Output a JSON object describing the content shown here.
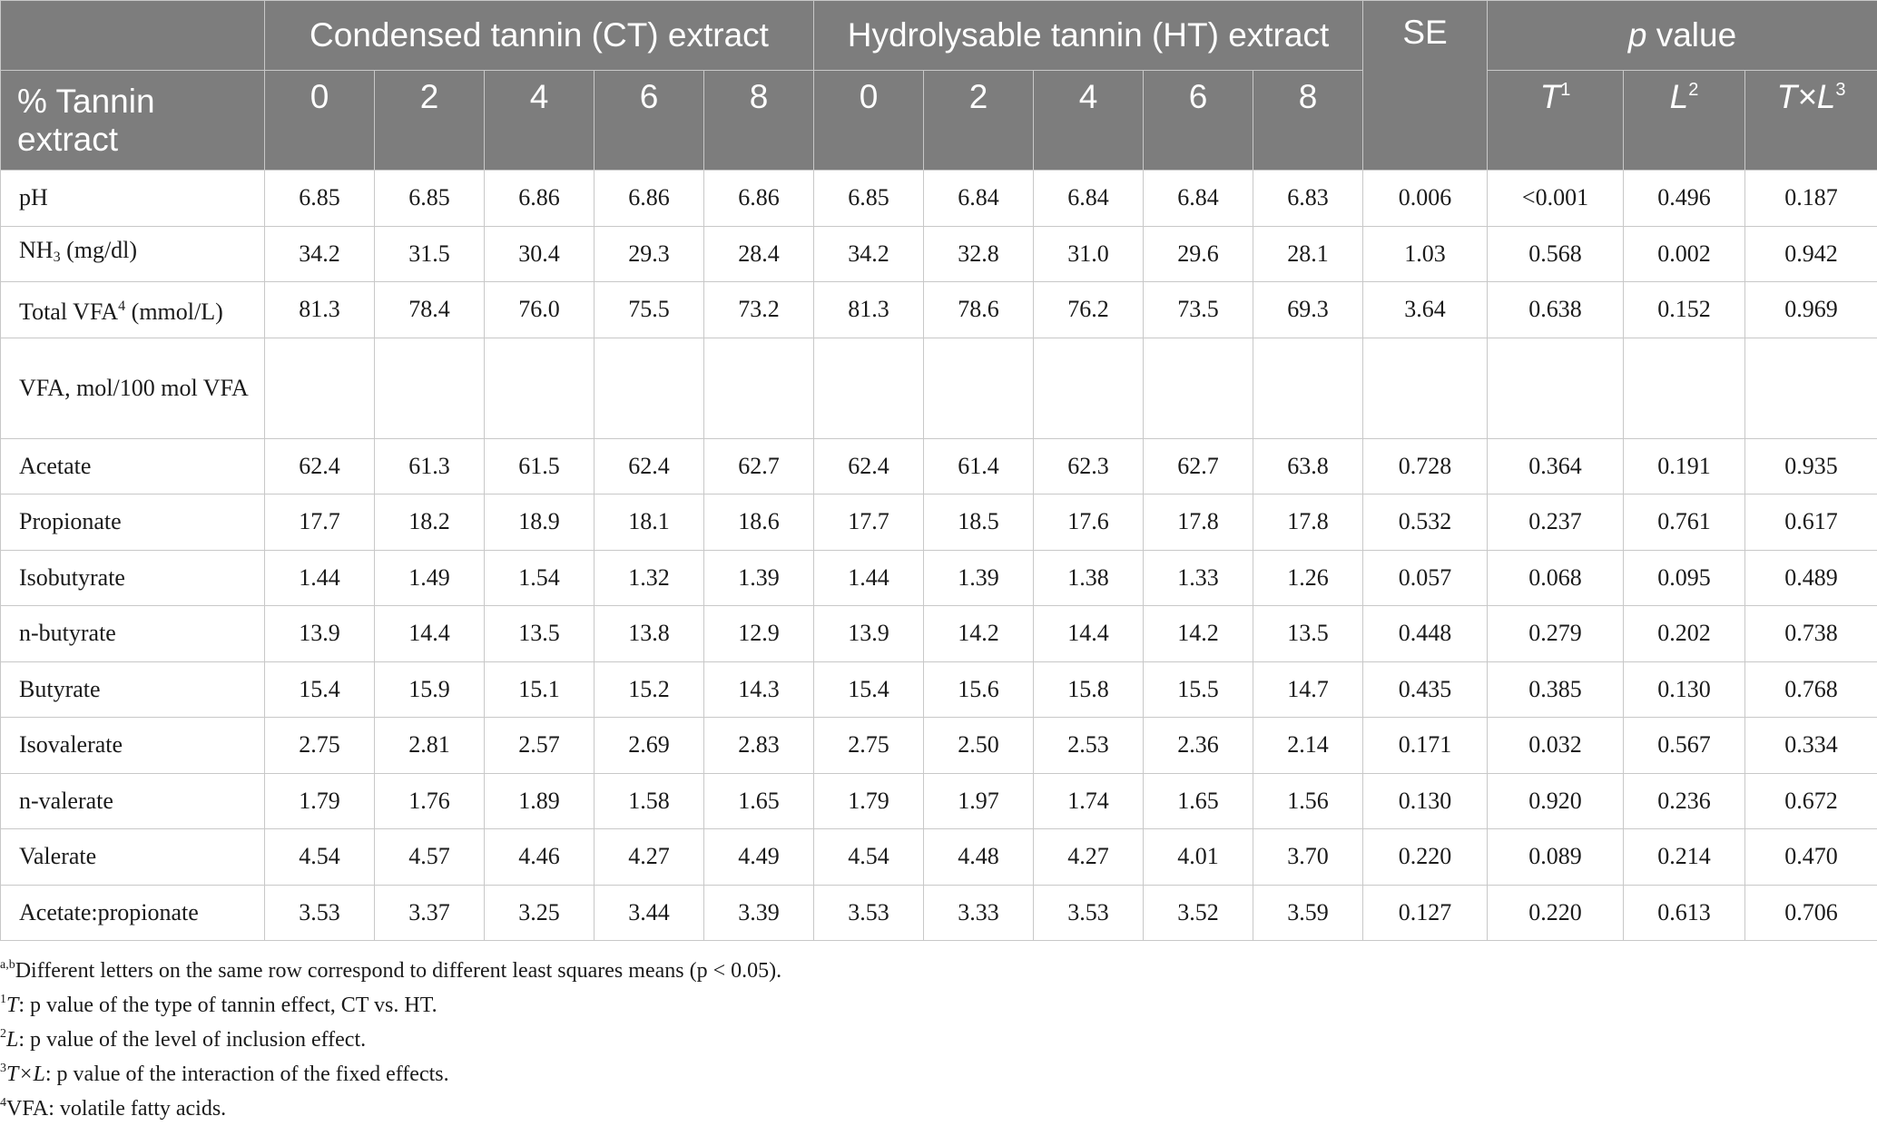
{
  "header": {
    "ct_group": "Condensed tannin (CT) extract",
    "ht_group": "Hydrolysable tannin (HT) extract",
    "se": "SE",
    "p_value_italic": "p",
    "p_value_rest": " value",
    "row_label": "% Tannin extract",
    "levels": [
      "0",
      "2",
      "4",
      "6",
      "8",
      "0",
      "2",
      "4",
      "6",
      "8"
    ],
    "p_cols": [
      {
        "main": "T",
        "sup": "1"
      },
      {
        "main": "L",
        "sup": "2"
      },
      {
        "main": "T×L",
        "sup": "3"
      }
    ]
  },
  "rows": [
    {
      "label": "pH",
      "values": [
        "6.85",
        "6.85",
        "6.86",
        "6.86",
        "6.86",
        "6.85",
        "6.84",
        "6.84",
        "6.84",
        "6.83",
        "0.006",
        "<0.001",
        "0.496",
        "0.187"
      ]
    },
    {
      "label_main": "NH",
      "label_sub": "3",
      "label_rest": " (mg/dl)",
      "values": [
        "34.2",
        "31.5",
        "30.4",
        "29.3",
        "28.4",
        "34.2",
        "32.8",
        "31.0",
        "29.6",
        "28.1",
        "1.03",
        "0.568",
        "0.002",
        "0.942"
      ]
    },
    {
      "label_main": "Total VFA",
      "label_sup": "4",
      "label_rest": " (mmol/L)",
      "values": [
        "81.3",
        "78.4",
        "76.0",
        "75.5",
        "73.2",
        "81.3",
        "78.6",
        "76.2",
        "73.5",
        "69.3",
        "3.64",
        "0.638",
        "0.152",
        "0.969"
      ]
    },
    {
      "label": "VFA, mol/100 mol VFA",
      "values": [
        "",
        "",
        "",
        "",
        "",
        "",
        "",
        "",
        "",
        "",
        "",
        "",
        "",
        ""
      ]
    },
    {
      "label": "Acetate",
      "values": [
        "62.4",
        "61.3",
        "61.5",
        "62.4",
        "62.7",
        "62.4",
        "61.4",
        "62.3",
        "62.7",
        "63.8",
        "0.728",
        "0.364",
        "0.191",
        "0.935"
      ]
    },
    {
      "label": "Propionate",
      "values": [
        "17.7",
        "18.2",
        "18.9",
        "18.1",
        "18.6",
        "17.7",
        "18.5",
        "17.6",
        "17.8",
        "17.8",
        "0.532",
        "0.237",
        "0.761",
        "0.617"
      ]
    },
    {
      "label": "Isobutyrate",
      "values": [
        "1.44",
        "1.49",
        "1.54",
        "1.32",
        "1.39",
        "1.44",
        "1.39",
        "1.38",
        "1.33",
        "1.26",
        "0.057",
        "0.068",
        "0.095",
        "0.489"
      ]
    },
    {
      "label": "n-butyrate",
      "values": [
        "13.9",
        "14.4",
        "13.5",
        "13.8",
        "12.9",
        "13.9",
        "14.2",
        "14.4",
        "14.2",
        "13.5",
        "0.448",
        "0.279",
        "0.202",
        "0.738"
      ]
    },
    {
      "label": "Butyrate",
      "values": [
        "15.4",
        "15.9",
        "15.1",
        "15.2",
        "14.3",
        "15.4",
        "15.6",
        "15.8",
        "15.5",
        "14.7",
        "0.435",
        "0.385",
        "0.130",
        "0.768"
      ]
    },
    {
      "label": "Isovalerate",
      "values": [
        "2.75",
        "2.81",
        "2.57",
        "2.69",
        "2.83",
        "2.75",
        "2.50",
        "2.53",
        "2.36",
        "2.14",
        "0.171",
        "0.032",
        "0.567",
        "0.334"
      ]
    },
    {
      "label": "n-valerate",
      "values": [
        "1.79",
        "1.76",
        "1.89",
        "1.58",
        "1.65",
        "1.79",
        "1.97",
        "1.74",
        "1.65",
        "1.56",
        "0.130",
        "0.920",
        "0.236",
        "0.672"
      ]
    },
    {
      "label": "Valerate",
      "values": [
        "4.54",
        "4.57",
        "4.46",
        "4.27",
        "4.49",
        "4.54",
        "4.48",
        "4.27",
        "4.01",
        "3.70",
        "0.220",
        "0.089",
        "0.214",
        "0.470"
      ]
    },
    {
      "label": "Acetate:propionate",
      "values": [
        "3.53",
        "3.37",
        "3.25",
        "3.44",
        "3.39",
        "3.53",
        "3.33",
        "3.53",
        "3.52",
        "3.59",
        "0.127",
        "0.220",
        "0.613",
        "0.706"
      ]
    }
  ],
  "footnotes": [
    {
      "mark": "a,b",
      "italic": "",
      "text": "Different letters on the same row correspond to different least squares means (p < 0.05)."
    },
    {
      "mark": "1",
      "italic": "T",
      "text": ": p value of the type of tannin effect, CT vs. HT."
    },
    {
      "mark": "2",
      "italic": "L",
      "text": ": p value of the level of inclusion effect."
    },
    {
      "mark": "3",
      "italic": "T×L",
      "text": ": p value of the interaction of the fixed effects."
    },
    {
      "mark": "4",
      "italic": "",
      "text": "VFA: volatile fatty acids."
    }
  ]
}
